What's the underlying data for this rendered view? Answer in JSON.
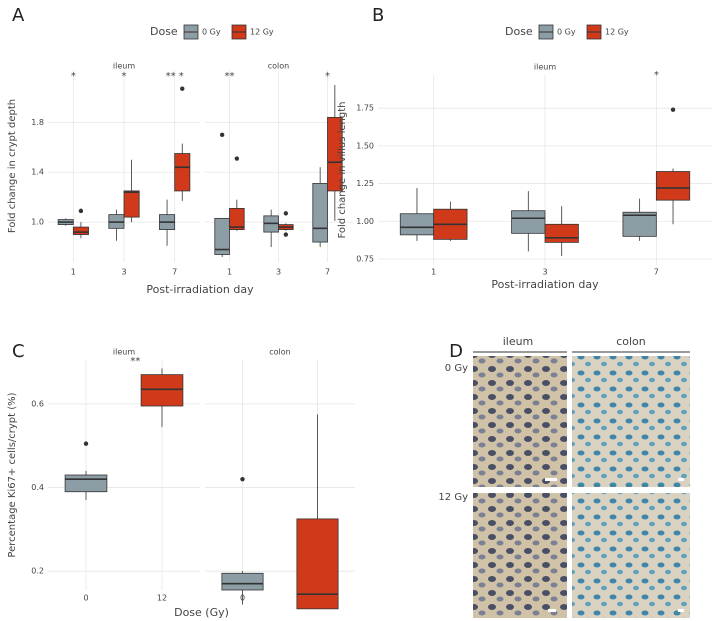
{
  "chart_data": [
    {
      "type": "box",
      "label": "A",
      "legend": true,
      "legend_title": "Dose",
      "grid": true,
      "facets": [
        "ileum",
        "colon"
      ],
      "categories": [
        "1",
        "3",
        "7"
      ],
      "xlabel": "Post-irradiation day",
      "ylabel": "Fold change in crypt depth",
      "ylim": [
        0.68,
        2.22
      ],
      "yticks": [
        {
          "value": 1,
          "label": "1.0"
        },
        1.4,
        1.8
      ],
      "series": [
        {
          "name": "0 Gy",
          "color": "#8c9da5",
          "boxes": [
            [
              {
                "min": 0.97,
                "q1": 0.98,
                "median": 1.0,
                "q3": 1.02,
                "max": 1.03,
                "outliers": []
              },
              {
                "min": 0.85,
                "q1": 0.95,
                "median": 1.0,
                "q3": 1.06,
                "max": 1.1,
                "outliers": []
              },
              {
                "min": 0.81,
                "q1": 0.94,
                "median": 1.0,
                "q3": 1.06,
                "max": 1.18,
                "outliers": []
              }
            ],
            [
              {
                "min": 0.72,
                "q1": 0.74,
                "median": 0.78,
                "q3": 1.03,
                "max": 1.03,
                "outliers": [
                  1.7
                ]
              },
              {
                "min": 0.8,
                "q1": 0.92,
                "median": 0.99,
                "q3": 1.05,
                "max": 1.1,
                "outliers": []
              },
              {
                "min": 0.8,
                "q1": 0.84,
                "median": 0.95,
                "q3": 1.31,
                "max": 1.44,
                "outliers": []
              }
            ]
          ]
        },
        {
          "name": "12 Gy",
          "color": "#d03a1b",
          "boxes": [
            [
              {
                "min": 0.87,
                "q1": 0.9,
                "median": 0.92,
                "q3": 0.96,
                "max": 1.0,
                "outliers": [
                  1.09
                ]
              },
              {
                "min": 1.0,
                "q1": 1.04,
                "median": 1.24,
                "q3": 1.25,
                "max": 1.5,
                "outliers": []
              },
              {
                "min": 1.17,
                "q1": 1.25,
                "median": 1.44,
                "q3": 1.55,
                "max": 1.63,
                "outliers": [
                  2.07
                ]
              }
            ],
            [
              {
                "min": 0.93,
                "q1": 0.94,
                "median": 0.96,
                "q3": 1.11,
                "max": 1.18,
                "outliers": [
                  1.51
                ]
              },
              {
                "min": 0.93,
                "q1": 0.94,
                "median": 0.96,
                "q3": 0.98,
                "max": 0.99,
                "outliers": [
                  1.07,
                  0.9
                ]
              },
              {
                "min": 1.01,
                "q1": 1.25,
                "median": 1.48,
                "q3": 1.84,
                "max": 2.1,
                "outliers": []
              }
            ]
          ]
        }
      ],
      "annotations": [
        [
          "*",
          "*",
          "** *"
        ],
        [
          "**",
          null,
          "*"
        ]
      ]
    },
    {
      "type": "box",
      "label": "B",
      "legend": true,
      "legend_title": "Dose",
      "grid": true,
      "facets": [
        "ileum"
      ],
      "categories": [
        "1",
        "3",
        "7"
      ],
      "xlabel": "Post-irradiation day",
      "ylabel": "Fold change in villus length",
      "ylim": [
        0.71,
        1.97
      ],
      "yticks": [
        0.75,
        {
          "value": 1,
          "label": "1.00"
        },
        1.25,
        {
          "value": 1.5,
          "label": "1.50"
        },
        1.75
      ],
      "series": [
        {
          "name": "0 Gy",
          "color": "#8c9da5",
          "boxes": [
            [
              {
                "min": 0.87,
                "q1": 0.91,
                "median": 0.96,
                "q3": 1.05,
                "max": 1.22,
                "outliers": []
              },
              {
                "min": 0.8,
                "q1": 0.92,
                "median": 1.02,
                "q3": 1.07,
                "max": 1.2,
                "outliers": []
              },
              {
                "min": 0.87,
                "q1": 0.9,
                "median": 1.04,
                "q3": 1.06,
                "max": 1.15,
                "outliers": []
              }
            ]
          ]
        },
        {
          "name": "12 Gy",
          "color": "#d03a1b",
          "boxes": [
            [
              {
                "min": 0.87,
                "q1": 0.88,
                "median": 0.98,
                "q3": 1.08,
                "max": 1.13,
                "outliers": []
              },
              {
                "min": 0.77,
                "q1": 0.86,
                "median": 0.89,
                "q3": 0.98,
                "max": 1.1,
                "outliers": []
              },
              {
                "min": 0.98,
                "q1": 1.14,
                "median": 1.22,
                "q3": 1.33,
                "max": 1.35,
                "outliers": [
                  1.74
                ]
              }
            ]
          ]
        }
      ],
      "annotations": [
        [
          null,
          null,
          "*"
        ]
      ]
    },
    {
      "type": "box",
      "label": "C",
      "legend": false,
      "grid": true,
      "facets": [
        "ileum",
        "colon"
      ],
      "categories": [
        "0",
        "12"
      ],
      "xlabel": "Dose (Gy)",
      "ylabel": "Percentage Ki67+ cells/crypt (%)",
      "ylim": [
        0.155,
        0.705
      ],
      "yticks": [
        0.2,
        0.4,
        0.6
      ],
      "colors": [
        "#8c9da5",
        "#d03a1b"
      ],
      "boxes": [
        [
          {
            "min": 0.37,
            "q1": 0.39,
            "median": 0.42,
            "q3": 0.43,
            "max": 0.44,
            "outliers": [
              0.505
            ]
          },
          {
            "min": 0.545,
            "q1": 0.595,
            "median": 0.635,
            "q3": 0.67,
            "max": 0.685,
            "outliers": []
          }
        ],
        [
          {
            "min": 0.12,
            "q1": 0.155,
            "median": 0.17,
            "q3": 0.195,
            "max": 0.2,
            "outliers": [
              0.42
            ]
          },
          {
            "min": 0.11,
            "q1": 0.11,
            "median": 0.145,
            "q3": 0.325,
            "max": 0.575,
            "outliers": []
          }
        ]
      ],
      "annotations": [
        [
          null,
          "**"
        ],
        [
          null,
          null
        ]
      ]
    }
  ],
  "image_panel": {
    "label": "D",
    "columns": [
      "ileum",
      "colon"
    ],
    "rows": [
      "0 Gy",
      "12 Gy"
    ]
  }
}
